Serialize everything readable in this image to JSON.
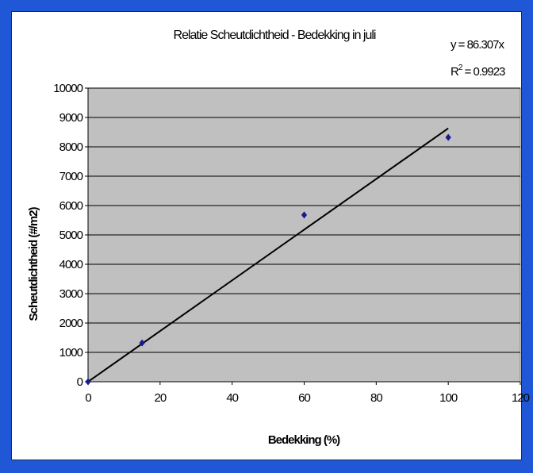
{
  "chart_data": {
    "type": "scatter",
    "title": "Relatie Scheutdichtheid - Bedekking in juli",
    "xlabel": "Bedekking (%)",
    "ylabel": "Scheutdichtheid (#/m2)",
    "xlim": [
      0,
      120
    ],
    "ylim": [
      0,
      10000
    ],
    "x_ticks": [
      0,
      20,
      40,
      60,
      80,
      100,
      120
    ],
    "y_ticks": [
      0,
      1000,
      2000,
      3000,
      4000,
      5000,
      6000,
      7000,
      8000,
      9000,
      10000
    ],
    "x_tick_labels": [
      "0",
      "20",
      "40",
      "60",
      "80",
      "100",
      "120"
    ],
    "y_tick_labels": [
      "0",
      "1000",
      "2000",
      "3000",
      "4000",
      "5000",
      "6000",
      "7000",
      "8000",
      "9000",
      "10000"
    ],
    "grid": "horizontal",
    "marker_color": "#1a1a8c",
    "plot_background": "#c0c0c0",
    "points": [
      {
        "x": 0,
        "y": 0
      },
      {
        "x": 15,
        "y": 1320
      },
      {
        "x": 60,
        "y": 5680
      },
      {
        "x": 100,
        "y": 8320
      }
    ],
    "trendline": {
      "slope": 86.307,
      "x_range": [
        0,
        100
      ],
      "color": "#000000"
    },
    "annotations": {
      "equation": "y = 86.307x",
      "r_squared_label": "R",
      "r_squared_exp": "2",
      "r_squared_value": " = 0.9923"
    }
  }
}
